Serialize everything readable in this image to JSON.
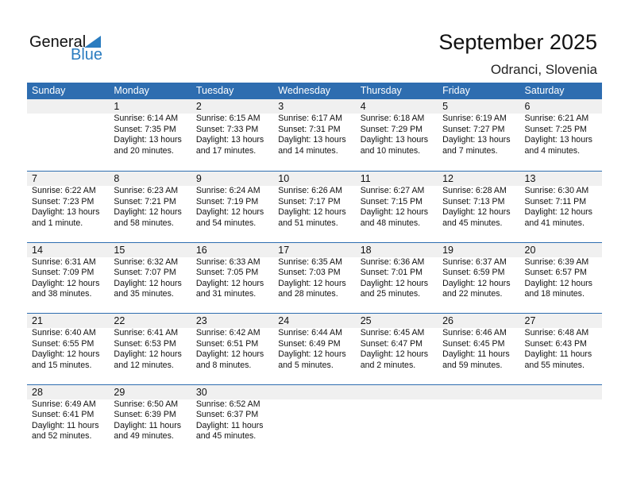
{
  "logo": {
    "text1": "General",
    "text2": "Blue"
  },
  "title": "September 2025",
  "location": "Odranci, Slovenia",
  "colors": {
    "header": "#2e6db0",
    "band": "#f0f0f0",
    "logo_blue": "#2a7cc0"
  },
  "days": [
    "Sunday",
    "Monday",
    "Tuesday",
    "Wednesday",
    "Thursday",
    "Friday",
    "Saturday"
  ],
  "weeks": [
    [
      null,
      {
        "day": "1",
        "sunrise": "Sunrise: 6:14 AM",
        "sunset": "Sunset: 7:35 PM",
        "d1": "Daylight: 13 hours",
        "d2": "and 20 minutes."
      },
      {
        "day": "2",
        "sunrise": "Sunrise: 6:15 AM",
        "sunset": "Sunset: 7:33 PM",
        "d1": "Daylight: 13 hours",
        "d2": "and 17 minutes."
      },
      {
        "day": "3",
        "sunrise": "Sunrise: 6:17 AM",
        "sunset": "Sunset: 7:31 PM",
        "d1": "Daylight: 13 hours",
        "d2": "and 14 minutes."
      },
      {
        "day": "4",
        "sunrise": "Sunrise: 6:18 AM",
        "sunset": "Sunset: 7:29 PM",
        "d1": "Daylight: 13 hours",
        "d2": "and 10 minutes."
      },
      {
        "day": "5",
        "sunrise": "Sunrise: 6:19 AM",
        "sunset": "Sunset: 7:27 PM",
        "d1": "Daylight: 13 hours",
        "d2": "and 7 minutes."
      },
      {
        "day": "6",
        "sunrise": "Sunrise: 6:21 AM",
        "sunset": "Sunset: 7:25 PM",
        "d1": "Daylight: 13 hours",
        "d2": "and 4 minutes."
      }
    ],
    [
      {
        "day": "7",
        "sunrise": "Sunrise: 6:22 AM",
        "sunset": "Sunset: 7:23 PM",
        "d1": "Daylight: 13 hours",
        "d2": "and 1 minute."
      },
      {
        "day": "8",
        "sunrise": "Sunrise: 6:23 AM",
        "sunset": "Sunset: 7:21 PM",
        "d1": "Daylight: 12 hours",
        "d2": "and 58 minutes."
      },
      {
        "day": "9",
        "sunrise": "Sunrise: 6:24 AM",
        "sunset": "Sunset: 7:19 PM",
        "d1": "Daylight: 12 hours",
        "d2": "and 54 minutes."
      },
      {
        "day": "10",
        "sunrise": "Sunrise: 6:26 AM",
        "sunset": "Sunset: 7:17 PM",
        "d1": "Daylight: 12 hours",
        "d2": "and 51 minutes."
      },
      {
        "day": "11",
        "sunrise": "Sunrise: 6:27 AM",
        "sunset": "Sunset: 7:15 PM",
        "d1": "Daylight: 12 hours",
        "d2": "and 48 minutes."
      },
      {
        "day": "12",
        "sunrise": "Sunrise: 6:28 AM",
        "sunset": "Sunset: 7:13 PM",
        "d1": "Daylight: 12 hours",
        "d2": "and 45 minutes."
      },
      {
        "day": "13",
        "sunrise": "Sunrise: 6:30 AM",
        "sunset": "Sunset: 7:11 PM",
        "d1": "Daylight: 12 hours",
        "d2": "and 41 minutes."
      }
    ],
    [
      {
        "day": "14",
        "sunrise": "Sunrise: 6:31 AM",
        "sunset": "Sunset: 7:09 PM",
        "d1": "Daylight: 12 hours",
        "d2": "and 38 minutes."
      },
      {
        "day": "15",
        "sunrise": "Sunrise: 6:32 AM",
        "sunset": "Sunset: 7:07 PM",
        "d1": "Daylight: 12 hours",
        "d2": "and 35 minutes."
      },
      {
        "day": "16",
        "sunrise": "Sunrise: 6:33 AM",
        "sunset": "Sunset: 7:05 PM",
        "d1": "Daylight: 12 hours",
        "d2": "and 31 minutes."
      },
      {
        "day": "17",
        "sunrise": "Sunrise: 6:35 AM",
        "sunset": "Sunset: 7:03 PM",
        "d1": "Daylight: 12 hours",
        "d2": "and 28 minutes."
      },
      {
        "day": "18",
        "sunrise": "Sunrise: 6:36 AM",
        "sunset": "Sunset: 7:01 PM",
        "d1": "Daylight: 12 hours",
        "d2": "and 25 minutes."
      },
      {
        "day": "19",
        "sunrise": "Sunrise: 6:37 AM",
        "sunset": "Sunset: 6:59 PM",
        "d1": "Daylight: 12 hours",
        "d2": "and 22 minutes."
      },
      {
        "day": "20",
        "sunrise": "Sunrise: 6:39 AM",
        "sunset": "Sunset: 6:57 PM",
        "d1": "Daylight: 12 hours",
        "d2": "and 18 minutes."
      }
    ],
    [
      {
        "day": "21",
        "sunrise": "Sunrise: 6:40 AM",
        "sunset": "Sunset: 6:55 PM",
        "d1": "Daylight: 12 hours",
        "d2": "and 15 minutes."
      },
      {
        "day": "22",
        "sunrise": "Sunrise: 6:41 AM",
        "sunset": "Sunset: 6:53 PM",
        "d1": "Daylight: 12 hours",
        "d2": "and 12 minutes."
      },
      {
        "day": "23",
        "sunrise": "Sunrise: 6:42 AM",
        "sunset": "Sunset: 6:51 PM",
        "d1": "Daylight: 12 hours",
        "d2": "and 8 minutes."
      },
      {
        "day": "24",
        "sunrise": "Sunrise: 6:44 AM",
        "sunset": "Sunset: 6:49 PM",
        "d1": "Daylight: 12 hours",
        "d2": "and 5 minutes."
      },
      {
        "day": "25",
        "sunrise": "Sunrise: 6:45 AM",
        "sunset": "Sunset: 6:47 PM",
        "d1": "Daylight: 12 hours",
        "d2": "and 2 minutes."
      },
      {
        "day": "26",
        "sunrise": "Sunrise: 6:46 AM",
        "sunset": "Sunset: 6:45 PM",
        "d1": "Daylight: 11 hours",
        "d2": "and 59 minutes."
      },
      {
        "day": "27",
        "sunrise": "Sunrise: 6:48 AM",
        "sunset": "Sunset: 6:43 PM",
        "d1": "Daylight: 11 hours",
        "d2": "and 55 minutes."
      }
    ],
    [
      {
        "day": "28",
        "sunrise": "Sunrise: 6:49 AM",
        "sunset": "Sunset: 6:41 PM",
        "d1": "Daylight: 11 hours",
        "d2": "and 52 minutes."
      },
      {
        "day": "29",
        "sunrise": "Sunrise: 6:50 AM",
        "sunset": "Sunset: 6:39 PM",
        "d1": "Daylight: 11 hours",
        "d2": "and 49 minutes."
      },
      {
        "day": "30",
        "sunrise": "Sunrise: 6:52 AM",
        "sunset": "Sunset: 6:37 PM",
        "d1": "Daylight: 11 hours",
        "d2": "and 45 minutes."
      },
      null,
      null,
      null,
      null
    ]
  ]
}
